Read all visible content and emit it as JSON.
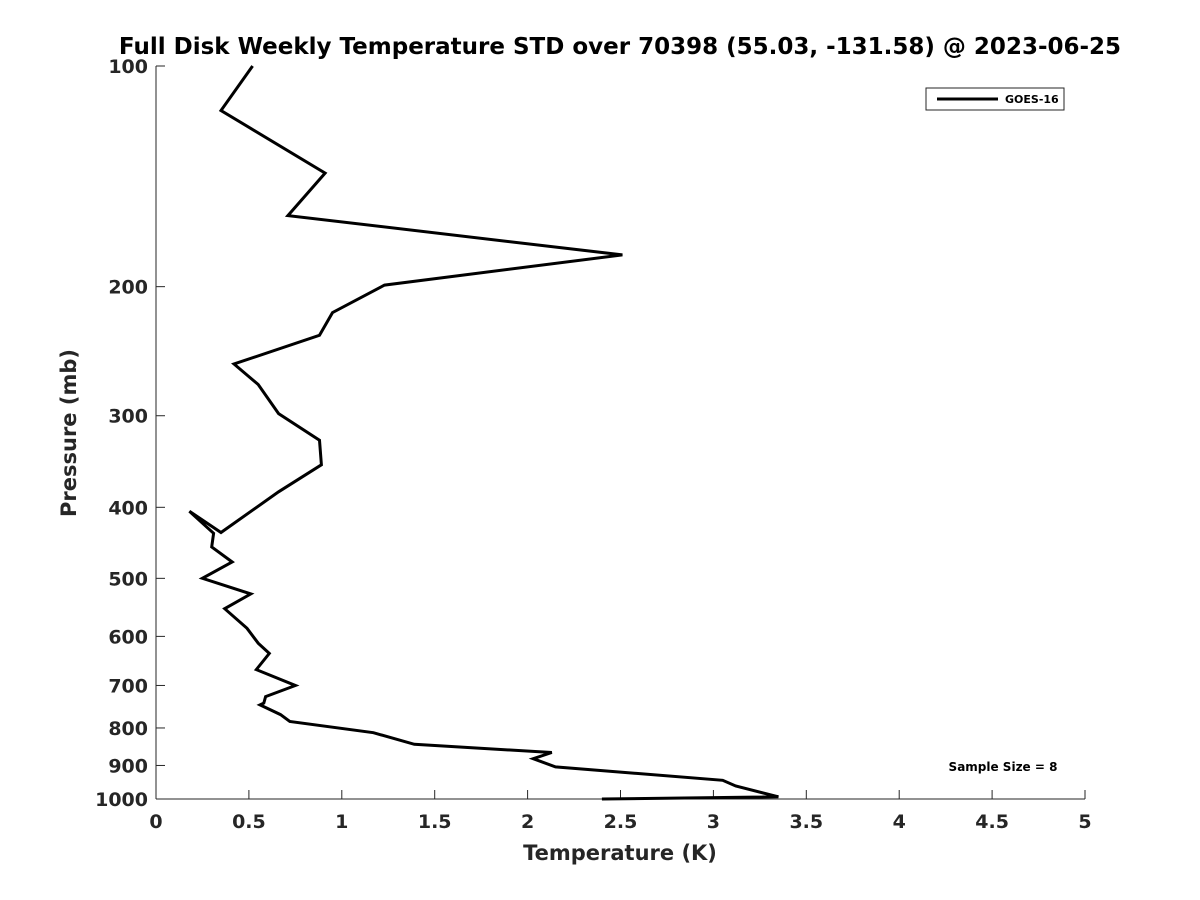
{
  "chart_data": {
    "type": "line",
    "title": "Full Disk Weekly Temperature STD over 70398 (55.03, -131.58) @ 2023-06-25",
    "xlabel": "Temperature (K)",
    "ylabel": "Pressure (mb)",
    "xlim": [
      0,
      5
    ],
    "ylim": [
      100,
      1000
    ],
    "y_scale": "log",
    "y_reversed": true,
    "grid": false,
    "legend_position": "top-right",
    "x_ticks": [
      "0",
      "0.5",
      "1",
      "1.5",
      "2",
      "2.5",
      "3",
      "3.5",
      "4",
      "4.5",
      "5"
    ],
    "y_ticks": [
      "100",
      "200",
      "300",
      "400",
      "500",
      "600",
      "700",
      "800",
      "900",
      "1000"
    ],
    "annotation": "Sample Size = 8",
    "series": [
      {
        "name": "GOES-16",
        "color": "#000000",
        "x": [
          0.52,
          0.35,
          0.91,
          0.71,
          2.51,
          1.23,
          0.95,
          0.88,
          0.42,
          0.55,
          0.66,
          0.88,
          0.89,
          0.66,
          0.35,
          0.18,
          0.31,
          0.3,
          0.41,
          0.25,
          0.51,
          0.37,
          0.49,
          0.55,
          0.61,
          0.54,
          0.75,
          0.59,
          0.58,
          0.56,
          0.67,
          0.72,
          1.17,
          1.39,
          2.13,
          2.03,
          2.15,
          3.05,
          3.12,
          3.35,
          2.4
        ],
        "y": [
          100,
          115,
          140,
          160,
          181,
          199,
          217,
          233,
          255,
          272,
          298,
          324,
          350,
          381,
          433,
          405,
          434,
          453,
          475,
          500,
          525,
          550,
          585,
          613,
          633,
          666,
          700,
          725,
          740,
          744,
          767,
          784,
          812,
          842,
          864,
          881,
          904,
          943,
          960,
          993,
          1000
        ]
      }
    ]
  }
}
